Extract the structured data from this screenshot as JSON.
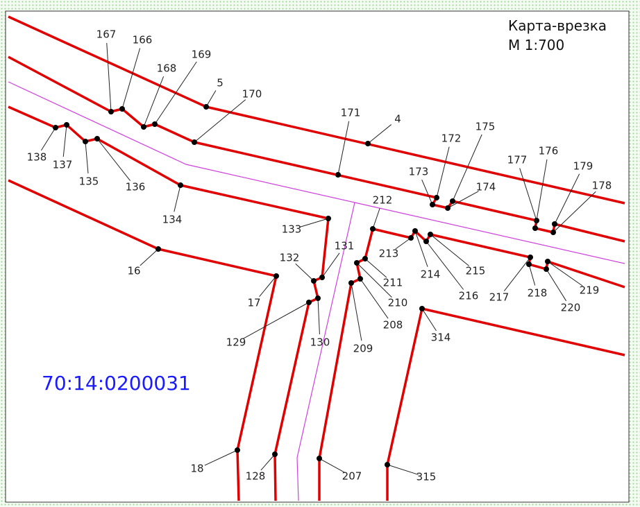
{
  "header": {
    "title": "Карта-врезка",
    "scale": "М 1:700"
  },
  "parcel": "70:14:0200031",
  "points": [
    {
      "label": "167"
    },
    {
      "label": "166"
    },
    {
      "label": "168"
    },
    {
      "label": "169"
    },
    {
      "label": "5"
    },
    {
      "label": "170"
    },
    {
      "label": "171"
    },
    {
      "label": "4"
    },
    {
      "label": "172"
    },
    {
      "label": "175"
    },
    {
      "label": "173"
    },
    {
      "label": "174"
    },
    {
      "label": "177"
    },
    {
      "label": "176"
    },
    {
      "label": "179"
    },
    {
      "label": "178"
    },
    {
      "label": "138"
    },
    {
      "label": "137"
    },
    {
      "label": "135"
    },
    {
      "label": "136"
    },
    {
      "label": "134"
    },
    {
      "label": "133"
    },
    {
      "label": "212"
    },
    {
      "label": "213"
    },
    {
      "label": "214"
    },
    {
      "label": "215"
    },
    {
      "label": "216"
    },
    {
      "label": "217"
    },
    {
      "label": "218"
    },
    {
      "label": "219"
    },
    {
      "label": "220"
    },
    {
      "label": "16"
    },
    {
      "label": "17"
    },
    {
      "label": "132"
    },
    {
      "label": "131"
    },
    {
      "label": "129"
    },
    {
      "label": "130"
    },
    {
      "label": "211"
    },
    {
      "label": "210"
    },
    {
      "label": "208"
    },
    {
      "label": "209"
    },
    {
      "label": "314"
    },
    {
      "label": "18"
    },
    {
      "label": "128"
    },
    {
      "label": "207"
    },
    {
      "label": "315"
    }
  ]
}
